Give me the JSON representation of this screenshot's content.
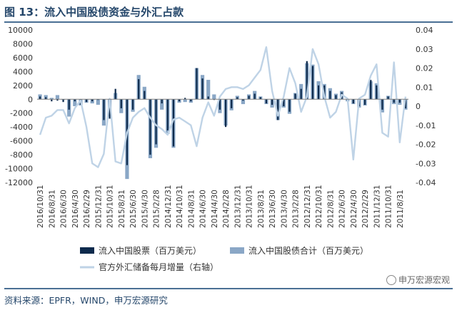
{
  "title": "图 13：流入中国股债资金与外汇占款",
  "source": "资料来源：EPFR，WIND，申万宏源研究",
  "watermark": "申万宏源宏观",
  "colors": {
    "equity": "#0d2a4c",
    "bond": "#8aa7c6",
    "fx": "#bfd3e6",
    "title": "#24466a"
  },
  "chart_data": {
    "type": "bar",
    "x_order": "newest-first",
    "x": [
      "2016/10/31",
      "2016/9/30",
      "2016/8/31",
      "2016/7/31",
      "2016/6/30",
      "2016/5/31",
      "2016/4/30",
      "2016/3/31",
      "2016/2/29",
      "2016/1/31",
      "2015/12/31",
      "2015/11/30",
      "2015/10/31",
      "2015/9/30",
      "2015/8/31",
      "2015/7/31",
      "2015/6/30",
      "2015/5/31",
      "2015/4/30",
      "2015/3/31",
      "2015/2/28",
      "2015/1/31",
      "2014/12/31",
      "2014/11/30",
      "2014/10/31",
      "2014/9/30",
      "2014/8/31",
      "2014/7/31",
      "2014/6/30",
      "2014/5/31",
      "2014/4/30",
      "2014/3/31",
      "2014/2/28",
      "2014/1/31",
      "2013/12/31",
      "2013/11/30",
      "2013/10/31",
      "2013/9/30",
      "2013/8/31",
      "2013/7/31",
      "2013/6/30",
      "2013/5/31",
      "2013/4/30",
      "2013/3/31",
      "2013/2/28",
      "2013/1/31",
      "2012/12/31",
      "2012/11/30",
      "2012/10/31",
      "2012/9/30",
      "2012/8/31",
      "2012/7/31",
      "2012/6/30",
      "2012/5/31",
      "2012/4/30",
      "2012/3/31",
      "2012/2/29",
      "2012/1/31",
      "2011/12/31",
      "2011/11/30",
      "2011/10/31",
      "2011/9/30",
      "2011/8/31",
      "2011/7/31"
    ],
    "tick_labels": [
      "2016/10/31",
      "2016/8/31",
      "2016/6/30",
      "2016/4/30",
      "2016/2/29",
      "2015/12/31",
      "2015/10/31",
      "2015/8/31",
      "2015/6/30",
      "2015/4/30",
      "2015/2/28",
      "2014/12/31",
      "2014/10/31",
      "2014/8/31",
      "2014/6/30",
      "2014/4/30",
      "2014/2/28",
      "2013/12/31",
      "2013/10/31",
      "2013/8/31",
      "2013/6/30",
      "2013/4/30",
      "2013/2/28",
      "2012/12/31",
      "2012/10/31",
      "2012/8/31",
      "2012/6/30",
      "2012/4/30",
      "2012/2/29",
      "2011/12/31",
      "2011/10/31",
      "2011/8/31"
    ],
    "series": [
      {
        "name": "流入中国股票（百万美元）",
        "kind": "bar",
        "axis": "left",
        "values": [
          400,
          300,
          -300,
          -200,
          -400,
          -1500,
          -300,
          -800,
          -400,
          -300,
          -100,
          -3000,
          -2800,
          1500,
          -1300,
          -9500,
          -1500,
          2900,
          1200,
          -8000,
          -6500,
          -600,
          -4500,
          -6800,
          -300,
          200,
          -300,
          4500,
          3000,
          400,
          -100,
          -1500,
          -4000,
          -1300,
          300,
          -200,
          500,
          800,
          300,
          -600,
          -800,
          -3000,
          -1000,
          -1800,
          800,
          1500,
          5500,
          4800,
          2000,
          2000,
          1200,
          600,
          1000,
          -200,
          -600,
          -1000,
          -800,
          2800,
          2000,
          -1500,
          400,
          -500,
          -500,
          -1300
        ]
      },
      {
        "name": "流入中国股债合计（百万美元）",
        "kind": "bar",
        "axis": "left",
        "values": [
          700,
          600,
          200,
          600,
          -100,
          -2500,
          -1000,
          -900,
          -500,
          -600,
          -800,
          -3800,
          -2500,
          900,
          -2000,
          -11500,
          -1800,
          3500,
          1800,
          -8500,
          -7000,
          -1500,
          -5000,
          -7000,
          -500,
          -400,
          -500,
          4500,
          3500,
          2800,
          700,
          -2000,
          -3800,
          -1600,
          500,
          -700,
          700,
          1200,
          400,
          -700,
          -1200,
          -3000,
          -1200,
          -2100,
          900,
          2200,
          5200,
          5000,
          2600,
          2200,
          1600,
          800,
          1200,
          -300,
          -700,
          -1200,
          -900,
          2600,
          2300,
          -1900,
          500,
          -700,
          -800,
          -1500
        ]
      },
      {
        "name": "官方外汇储备每月增量（右轴）",
        "kind": "line",
        "axis": "right",
        "values": [
          -0.015,
          -0.006,
          -0.005,
          -0.002,
          -0.002,
          -0.009,
          -0.001,
          0.003,
          -0.011,
          -0.03,
          -0.032,
          -0.025,
          0.004,
          -0.029,
          -0.03,
          -0.014,
          -0.006,
          -0.003,
          -0.001,
          -0.006,
          -0.01,
          -0.012,
          -0.015,
          -0.007,
          -0.006,
          -0.008,
          -0.01,
          -0.021,
          -0.006,
          0.002,
          -0.005,
          0.005,
          0.009,
          0.01,
          0.01,
          0.009,
          0.011,
          0.015,
          0.019,
          0.031,
          0.008,
          -0.005,
          0.005,
          0.02,
          0.012,
          -0.003,
          0.005,
          0.03,
          0.022,
          0.005,
          -0.006,
          -0.003,
          0.006,
          0.004,
          -0.028,
          0.004,
          0.006,
          0.016,
          0.022,
          -0.014,
          -0.016,
          0.023,
          -0.019,
          0.005
        ]
      }
    ],
    "y_left": {
      "min": -12000,
      "max": 10000,
      "ticks": [
        10000,
        8000,
        6000,
        4000,
        2000,
        0,
        -2000,
        -4000,
        -6000,
        -8000,
        -10000,
        -12000
      ]
    },
    "y_right": {
      "min": -0.04,
      "max": 0.04,
      "ticks": [
        "0.04",
        "0.03",
        "0.02",
        "0.01",
        "0",
        "-0.01",
        "-0.02",
        "-0.03",
        "-0.04"
      ]
    },
    "legend_placement": "bottom",
    "grid": false
  }
}
